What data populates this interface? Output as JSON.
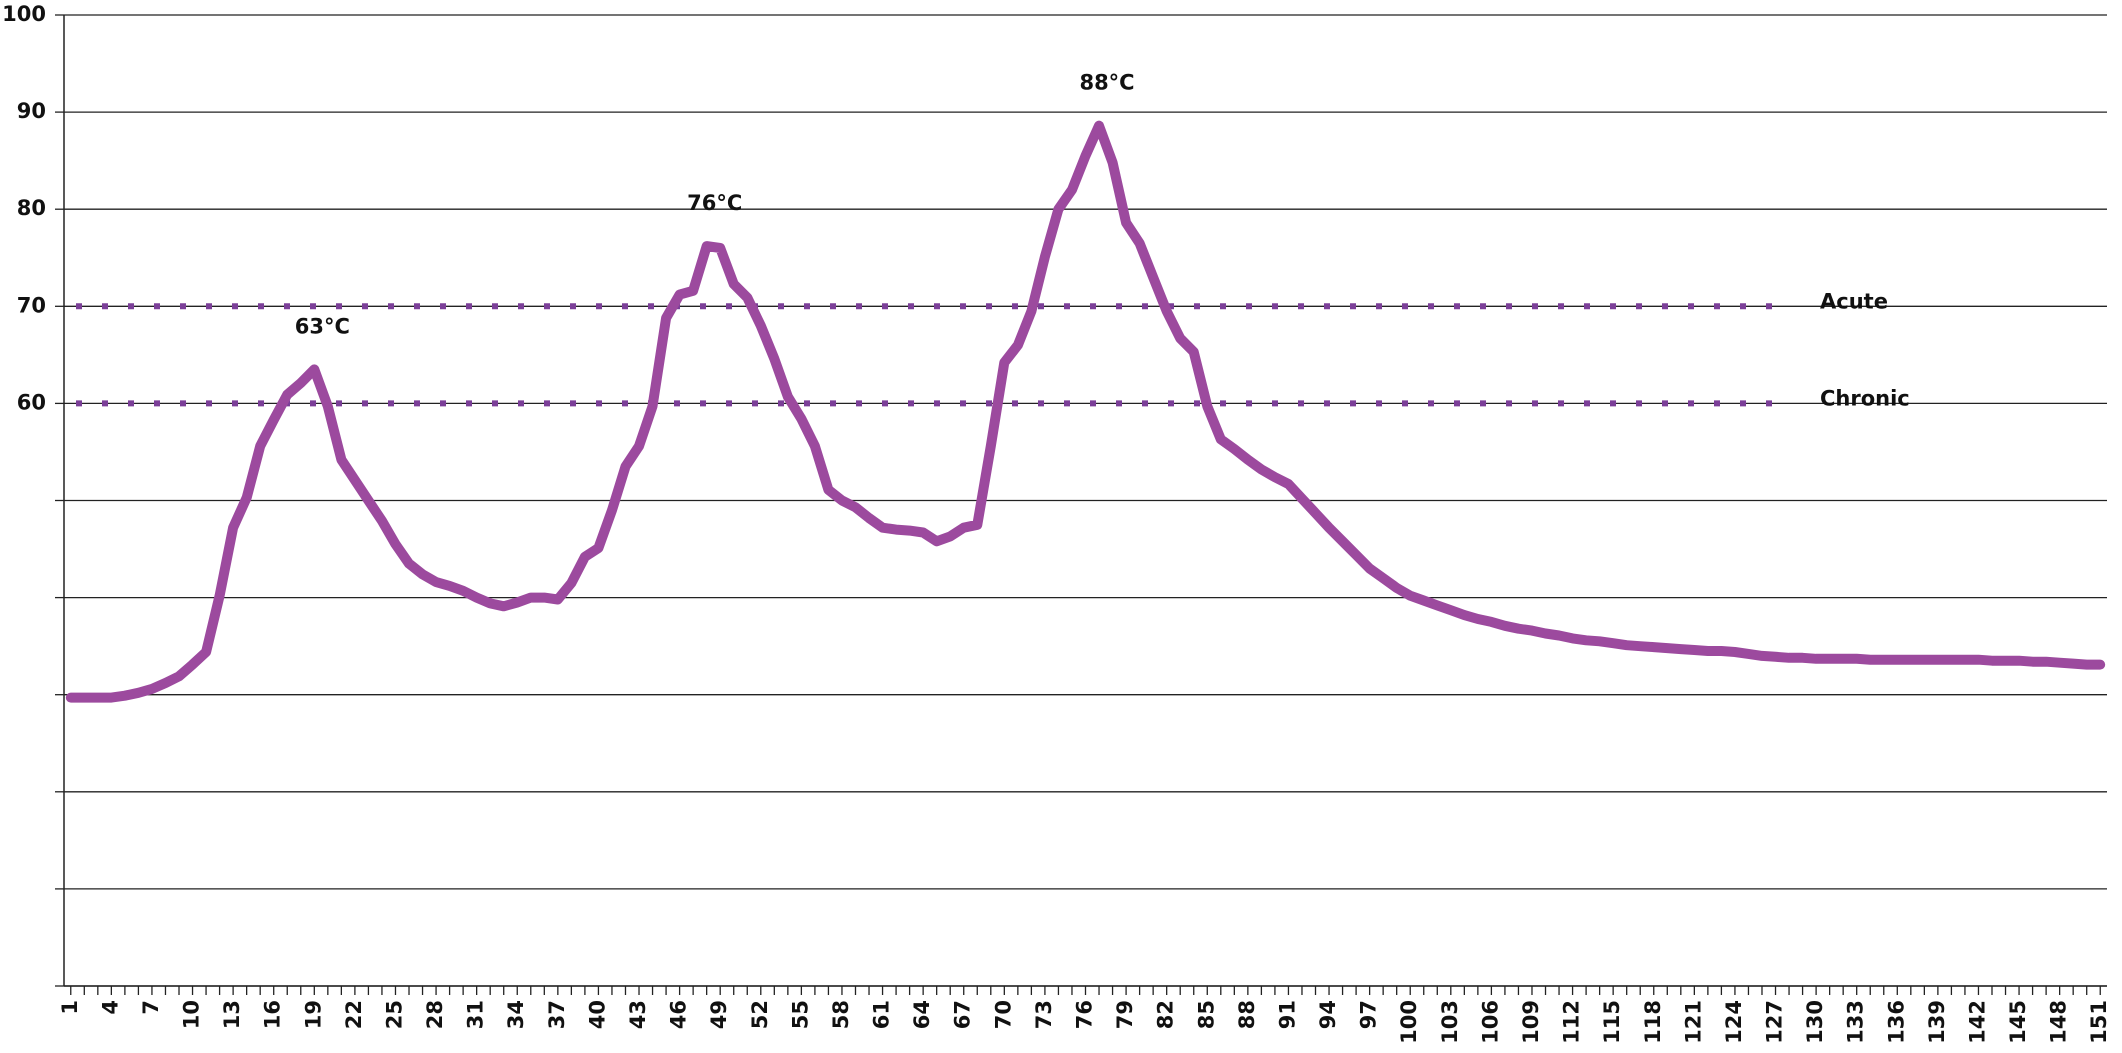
{
  "chart_data": {
    "type": "line",
    "x": [
      1,
      2,
      3,
      4,
      5,
      6,
      7,
      8,
      9,
      10,
      11,
      12,
      13,
      14,
      15,
      16,
      17,
      18,
      19,
      20,
      21,
      22,
      23,
      24,
      25,
      26,
      27,
      28,
      29,
      30,
      31,
      32,
      33,
      34,
      35,
      36,
      37,
      38,
      39,
      40,
      41,
      42,
      43,
      44,
      45,
      46,
      47,
      48,
      49,
      50,
      51,
      52,
      53,
      54,
      55,
      56,
      57,
      58,
      59,
      60,
      61,
      62,
      63,
      64,
      65,
      66,
      67,
      68,
      69,
      70,
      71,
      72,
      73,
      74,
      75,
      76,
      77,
      78,
      79,
      80,
      81,
      82,
      83,
      84,
      85,
      86,
      87,
      88,
      89,
      90,
      91,
      92,
      93,
      94,
      95,
      96,
      97,
      98,
      99,
      100,
      101,
      102,
      103,
      104,
      105,
      106,
      107,
      108,
      109,
      110,
      111,
      112,
      113,
      114,
      115,
      116,
      117,
      118,
      119,
      120,
      121,
      122,
      123,
      124,
      125,
      126,
      127,
      128,
      129,
      130,
      131,
      132,
      133,
      134,
      135,
      136,
      137,
      138,
      139,
      140,
      141,
      142,
      143,
      144,
      145,
      146,
      147,
      148,
      149,
      150,
      151
    ],
    "series": [
      {
        "color": "#9c4a9e",
        "values": [
          29.7,
          29.7,
          29.7,
          29.7,
          29.9,
          30.2,
          30.6,
          31.2,
          31.9,
          33.1,
          34.4,
          40.2,
          47.2,
          50.3,
          55.6,
          58.3,
          60.9,
          62.1,
          63.5,
          59.7,
          54.2,
          52.1,
          50,
          47.9,
          45.5,
          43.5,
          42.4,
          41.6,
          41.2,
          40.7,
          40,
          39.4,
          39.1,
          39.5,
          40,
          40,
          39.8,
          41.5,
          44.2,
          45.1,
          49,
          53.5,
          55.6,
          59.7,
          68.8,
          71.2,
          71.6,
          76.2,
          76,
          72.3,
          70.9,
          68,
          64.6,
          60.7,
          58.4,
          55.6,
          51.1,
          50,
          49.3,
          48.2,
          47.2,
          47,
          46.9,
          46.7,
          45.8,
          46.3,
          47.2,
          47.5,
          55.6,
          64.2,
          66,
          69.5,
          75.1,
          80,
          82,
          85.5,
          88.6,
          84.8,
          78.6,
          76.5,
          73,
          69.5,
          66.7,
          65.3,
          59.7,
          56.3,
          55.3,
          54.2,
          53.2,
          52.4,
          51.7,
          50.2,
          48.7,
          47.2,
          45.8,
          44.4,
          43,
          42,
          41,
          40.2,
          39.7,
          39.2,
          38.7,
          38.2,
          37.8,
          37.5,
          37.1,
          36.8,
          36.6,
          36.3,
          36.1,
          35.8,
          35.6,
          35.5,
          35.3,
          35.1,
          35,
          34.9,
          34.8,
          34.7,
          34.6,
          34.5,
          34.5,
          34.4,
          34.2,
          34,
          33.9,
          33.8,
          33.8,
          33.7,
          33.7,
          33.7,
          33.7,
          33.6,
          33.6,
          33.6,
          33.6,
          33.6,
          33.6,
          33.6,
          33.6,
          33.6,
          33.5,
          33.5,
          33.5,
          33.4,
          33.4,
          33.3,
          33.2,
          33.1,
          33.1
        ]
      }
    ],
    "xlim": [
      0.5,
      151.5
    ],
    "xticks": [
      1,
      4,
      7,
      10,
      13,
      16,
      19,
      22,
      25,
      28,
      31,
      34,
      37,
      40,
      43,
      46,
      49,
      52,
      55,
      58,
      61,
      64,
      67,
      70,
      73,
      76,
      79,
      82,
      85,
      88,
      91,
      94,
      97,
      100,
      103,
      106,
      109,
      112,
      115,
      118,
      121,
      124,
      127,
      130,
      133,
      136,
      139,
      142,
      145,
      148,
      151
    ],
    "ylim": [
      0,
      100
    ],
    "yticks": [
      {
        "value": 0,
        "label": null
      },
      {
        "value": 10,
        "label": null
      },
      {
        "value": 20,
        "label": null
      },
      {
        "value": 30,
        "label": null
      },
      {
        "value": 40,
        "label": null
      },
      {
        "value": 50,
        "label": null
      },
      60,
      70,
      80,
      90,
      100
    ],
    "grid": true,
    "reference_lines": [
      {
        "value": 70,
        "label": "Acute",
        "color": "#7b3f98"
      },
      {
        "value": 60,
        "label": "Chronic",
        "color": "#7b3f98"
      }
    ],
    "annotations": [
      {
        "text": "63°C",
        "x": 19
      },
      {
        "text": "76°C",
        "x": 48
      },
      {
        "text": "88°C",
        "x": 77
      }
    ],
    "annotation_color": "#8a3f9c"
  }
}
